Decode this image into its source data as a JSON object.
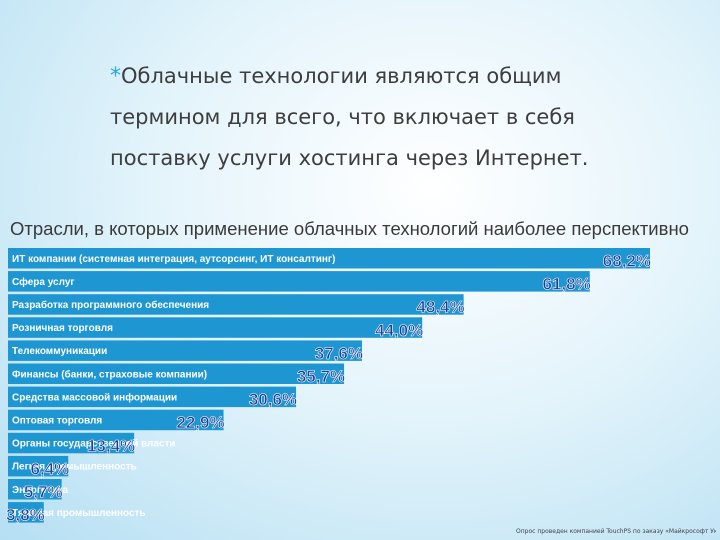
{
  "intro": {
    "bullet": "*",
    "lines": [
      "Облачные технологии являются общим",
      "термином для всего, что включает в себя",
      "поставку услуги хостинга через Интернет."
    ]
  },
  "source_note": "Опрос проведен компанией TouchPS по заказу «Майкрософт Украина»",
  "colors": {
    "bar": "#1e96d1",
    "value": "#1d3f96",
    "label": "#ffffff"
  },
  "chart_data": {
    "type": "bar",
    "orientation": "horizontal",
    "title": "Отрасли, в которых применение облачных технологий наиболее перспективно",
    "unit": "%",
    "categories": [
      "ИТ компании (системная интеграция, аутсорсинг, ИТ консалтинг)",
      "Сфера услуг",
      "Разработка программного обеспечения",
      "Розничная торговля",
      "Телекоммуникации",
      "Финансы (банки, страховые компании)",
      "Средства массовой информации",
      "Оптовая торговля",
      "Органы государственной власти",
      "Легкая промышленность",
      "Энергетика",
      "Тяжелая промышленность"
    ],
    "values": [
      68.2,
      61.8,
      48.4,
      44.0,
      37.6,
      35.7,
      30.6,
      22.9,
      13.4,
      6.4,
      5.7,
      3.8
    ],
    "value_labels": [
      "68,2%",
      "61,8%",
      "48,4%",
      "44,0%",
      "37,6%",
      "35,7%",
      "30,6%",
      "22,9%",
      "13,4%",
      "6,4%",
      "5,7%",
      "3,8%"
    ]
  }
}
